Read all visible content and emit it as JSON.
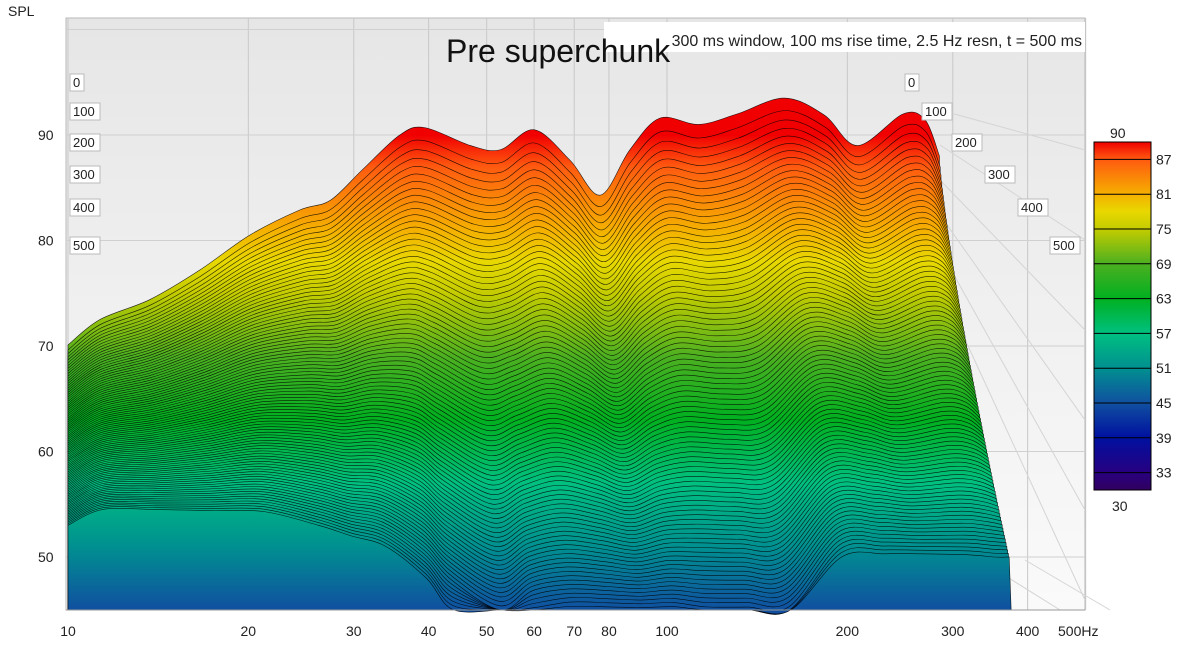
{
  "chart_data": {
    "type": "waterfall",
    "title": "Pre superchunk",
    "subtitle": "300 ms window, 100 ms rise time,  2.5 Hz resn, t = 500 ms",
    "ylabel": "SPL",
    "xunit": "Hz",
    "xscale": "log",
    "xlim": [
      10,
      500
    ],
    "ylim": [
      45,
      100
    ],
    "grid": true,
    "x_ticks": [
      10,
      20,
      30,
      40,
      50,
      60,
      70,
      80,
      100,
      200,
      300,
      400,
      500
    ],
    "x_tick_labels": [
      "10",
      "20",
      "30",
      "40",
      "50",
      "60",
      "70",
      "80",
      "100",
      "200",
      "300",
      "400",
      "500Hz"
    ],
    "y_ticks": [
      90,
      80,
      70,
      60,
      50
    ],
    "time_axis_labels": [
      "0",
      "100",
      "200",
      "300",
      "400",
      "500"
    ],
    "time_ms": [
      0,
      500
    ],
    "freq_hz": [
      10,
      11.3,
      13.7,
      16.6,
      20.1,
      24.4,
      27.4,
      31,
      35.8,
      39.4,
      47,
      52.7,
      60,
      68.9,
      77.4,
      86.7,
      97.3,
      113,
      131,
      157,
      183,
      208,
      248,
      270,
      285
    ],
    "spl_t0": [
      70.1,
      72.5,
      74.4,
      77.2,
      80.5,
      82.9,
      83.8,
      86.7,
      90,
      90.7,
      89,
      88.6,
      90.5,
      87.6,
      84.3,
      88.6,
      91.6,
      91,
      92,
      93.5,
      91.9,
      89,
      92,
      91.4,
      88
    ],
    "spl_t500": [
      53,
      54.5,
      54.5,
      54.4,
      54.3,
      53,
      52,
      51,
      48,
      45,
      42,
      44,
      44.5,
      44.5,
      44.5,
      44.5,
      44,
      44,
      44,
      50,
      50.3,
      50.3,
      50.2,
      50,
      50
    ],
    "colorbar": {
      "range": [
        30,
        90
      ],
      "labels": [
        "90",
        "87",
        "81",
        "75",
        "69",
        "63",
        "57",
        "51",
        "45",
        "39",
        "33",
        "30"
      ],
      "stops": [
        {
          "v": 90,
          "c": "#f00000"
        },
        {
          "v": 87,
          "c": "#ff5a10"
        },
        {
          "v": 81,
          "c": "#f5b000"
        },
        {
          "v": 78,
          "c": "#e8d800"
        },
        {
          "v": 75,
          "c": "#c4cc00"
        },
        {
          "v": 69,
          "c": "#4cb020"
        },
        {
          "v": 63,
          "c": "#00b020"
        },
        {
          "v": 57,
          "c": "#00c080"
        },
        {
          "v": 51,
          "c": "#009090"
        },
        {
          "v": 45,
          "c": "#1050a0"
        },
        {
          "v": 39,
          "c": "#0010a0"
        },
        {
          "v": 33,
          "c": "#280080"
        },
        {
          "v": 30,
          "c": "#300060"
        }
      ]
    }
  }
}
